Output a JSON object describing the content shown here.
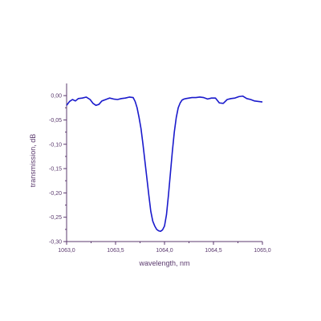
{
  "chart_data": {
    "type": "line",
    "xlabel": "wavelength, nm",
    "ylabel": "transmission, dB",
    "xlim": [
      1063.0,
      1065.0
    ],
    "ylim": [
      -0.3,
      0.025
    ],
    "x_ticks": [
      1063.0,
      1063.5,
      1064.0,
      1064.5,
      1065.0
    ],
    "x_tick_labels": [
      "1063,0",
      "1063,5",
      "1064,0",
      "1064,5",
      "1065,0"
    ],
    "y_ticks": [
      0.0,
      -0.05,
      -0.1,
      -0.15,
      -0.2,
      -0.25,
      -0.3
    ],
    "y_tick_labels": [
      "0,00",
      "-0,05",
      "-0,10",
      "-0,15",
      "-0,20",
      "-0,25",
      "-0,30"
    ],
    "grid": false,
    "colors": {
      "line": "#1a1acc",
      "axis": "#5b3a6e",
      "text": "#5b3a6e"
    },
    "series": [
      {
        "x": [
          1063.0,
          1063.03,
          1063.06,
          1063.09,
          1063.12,
          1063.16,
          1063.2,
          1063.24,
          1063.27,
          1063.3,
          1063.33,
          1063.36,
          1063.4,
          1063.44,
          1063.48,
          1063.52,
          1063.56,
          1063.6,
          1063.64,
          1063.68,
          1063.7,
          1063.72,
          1063.74,
          1063.76,
          1063.78,
          1063.8,
          1063.82,
          1063.84,
          1063.86,
          1063.88,
          1063.9,
          1063.92,
          1063.94,
          1063.96,
          1063.98,
          1064.0,
          1064.02,
          1064.04,
          1064.06,
          1064.08,
          1064.1,
          1064.12,
          1064.14,
          1064.16,
          1064.18,
          1064.2,
          1064.22,
          1064.25,
          1064.28,
          1064.32,
          1064.36,
          1064.4,
          1064.44,
          1064.48,
          1064.52,
          1064.56,
          1064.6,
          1064.64,
          1064.68,
          1064.72,
          1064.76,
          1064.8,
          1064.84,
          1064.88,
          1064.92,
          1064.96,
          1065.0
        ],
        "y": [
          -0.02,
          -0.012,
          -0.008,
          -0.011,
          -0.006,
          -0.005,
          -0.003,
          -0.008,
          -0.016,
          -0.02,
          -0.018,
          -0.011,
          -0.008,
          -0.005,
          -0.007,
          -0.008,
          -0.006,
          -0.005,
          -0.003,
          -0.004,
          -0.012,
          -0.025,
          -0.045,
          -0.068,
          -0.1,
          -0.135,
          -0.17,
          -0.205,
          -0.238,
          -0.258,
          -0.268,
          -0.275,
          -0.278,
          -0.279,
          -0.276,
          -0.268,
          -0.245,
          -0.205,
          -0.16,
          -0.115,
          -0.075,
          -0.045,
          -0.025,
          -0.015,
          -0.009,
          -0.007,
          -0.006,
          -0.005,
          -0.004,
          -0.004,
          -0.003,
          -0.004,
          -0.007,
          -0.005,
          -0.005,
          -0.015,
          -0.016,
          -0.008,
          -0.006,
          -0.005,
          -0.002,
          -0.001,
          -0.006,
          -0.008,
          -0.011,
          -0.012,
          -0.013
        ]
      }
    ]
  }
}
